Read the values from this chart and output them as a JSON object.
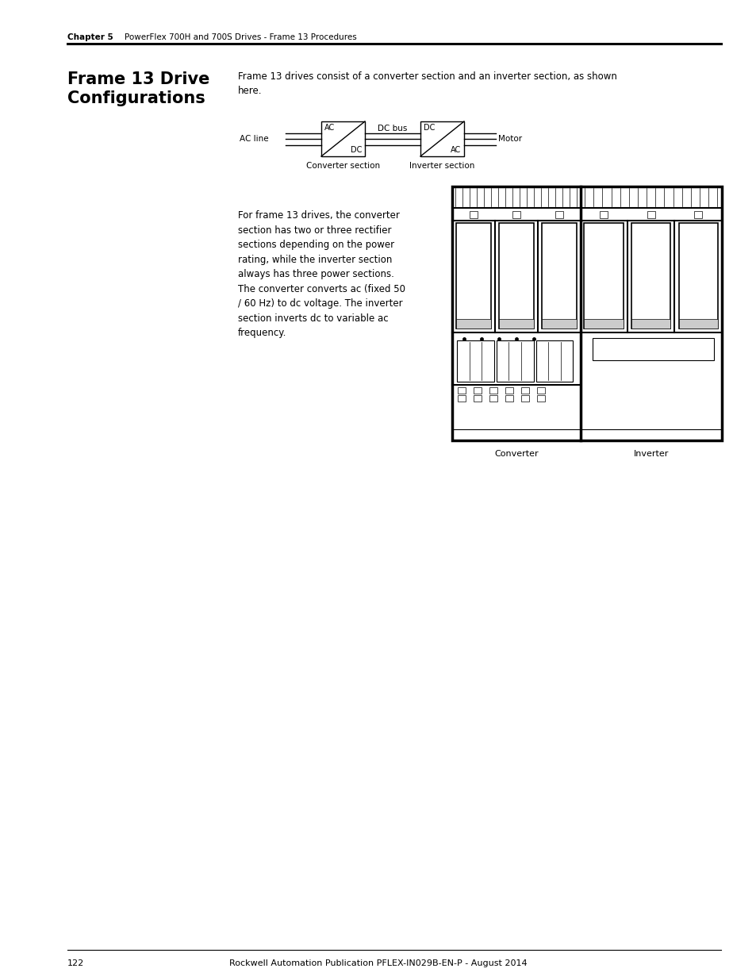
{
  "bg_color": "#ffffff",
  "page_width": 9.54,
  "page_height": 12.35,
  "header_chapter": "Chapter 5",
  "header_subtitle": "PowerFlex 700H and 700S Drives - Frame 13 Procedures",
  "title_bold": "Frame 13 Drive\nConfigurations",
  "intro_text": "Frame 13 drives consist of a converter section and an inverter section, as shown\nhere.",
  "body_text": "For frame 13 drives, the converter\nsection has two or three rectifier\nsections depending on the power\nrating, while the inverter section\nalways has three power sections.\nThe converter converts ac (fixed 50\n/ 60 Hz) to dc voltage. The inverter\nsection inverts dc to variable ac\nfrequency.",
  "footer_text": "Rockwell Automation Publication PFLEX-IN029B-EN-P - August 2014",
  "footer_page": "122"
}
